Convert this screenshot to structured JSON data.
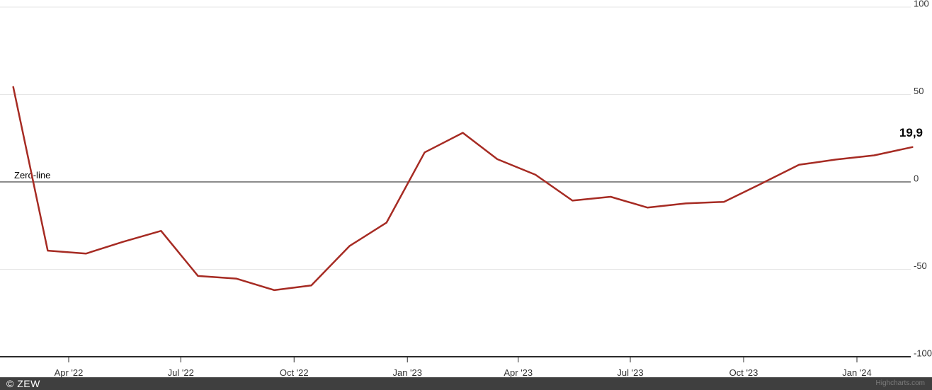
{
  "chart_data": {
    "type": "line",
    "title": "",
    "legend": "none",
    "grid": "horizontal",
    "line_width": 2.5,
    "series": [
      {
        "color": "#a62b23",
        "points": [
          {
            "month": "2022-02",
            "value": 54.3
          },
          {
            "month": "2022-03",
            "value": -39.3
          },
          {
            "month": "2022-04",
            "value": -41.0
          },
          {
            "month": "2022-05",
            "value": -34.3
          },
          {
            "month": "2022-06",
            "value": -28.0
          },
          {
            "month": "2022-07",
            "value": -53.8
          },
          {
            "month": "2022-08",
            "value": -55.3
          },
          {
            "month": "2022-09",
            "value": -61.9
          },
          {
            "month": "2022-10",
            "value": -59.2
          },
          {
            "month": "2022-11",
            "value": -36.7
          },
          {
            "month": "2022-12",
            "value": -23.3
          },
          {
            "month": "2023-01",
            "value": 16.9
          },
          {
            "month": "2023-02",
            "value": 28.1
          },
          {
            "month": "2023-03",
            "value": 13.0
          },
          {
            "month": "2023-04",
            "value": 4.1
          },
          {
            "month": "2023-05",
            "value": -10.7
          },
          {
            "month": "2023-06",
            "value": -8.5
          },
          {
            "month": "2023-07",
            "value": -14.7
          },
          {
            "month": "2023-08",
            "value": -12.3
          },
          {
            "month": "2023-09",
            "value": -11.4
          },
          {
            "month": "2023-10",
            "value": -1.1
          },
          {
            "month": "2023-11",
            "value": 9.8
          },
          {
            "month": "2023-12",
            "value": 12.8
          },
          {
            "month": "2024-01",
            "value": 15.2
          },
          {
            "month": "2024-02",
            "value": 19.9
          }
        ]
      }
    ],
    "x_ticks": [
      {
        "label": "Apr '22",
        "date": "2022-04"
      },
      {
        "label": "Jul '22",
        "date": "2022-07"
      },
      {
        "label": "Oct '22",
        "date": "2022-10"
      },
      {
        "label": "Jan '23",
        "date": "2023-01"
      },
      {
        "label": "Apr '23",
        "date": "2023-04"
      },
      {
        "label": "Jul '23",
        "date": "2023-07"
      },
      {
        "label": "Oct '23",
        "date": "2023-10"
      },
      {
        "label": "Jan '24",
        "date": "2024-01"
      }
    ],
    "y_ticks": [
      {
        "label": "100",
        "value": 100
      },
      {
        "label": "50",
        "value": 50
      },
      {
        "label": "0",
        "value": 0
      },
      {
        "label": "-50",
        "value": -50
      },
      {
        "label": "-100",
        "value": -100
      }
    ],
    "ylim": [
      -100,
      100
    ],
    "zero_plot_line": {
      "label": "Zero-line",
      "value": 0
    },
    "last_value_label": "19,9"
  },
  "colors": {
    "series": "#a62b23",
    "grid": "#e6e6e6",
    "zero_line": "#8c8c8c",
    "axis_line": "#2b2b2b",
    "tick_text": "#333333",
    "annotation_text": "#000000",
    "footer_bg": "#3f3f3f",
    "footer_text": "#ffffff",
    "credits_text": "#7d7d7d"
  },
  "footer": {
    "copyright": "© ZEW",
    "credits": "Highcharts.com"
  }
}
